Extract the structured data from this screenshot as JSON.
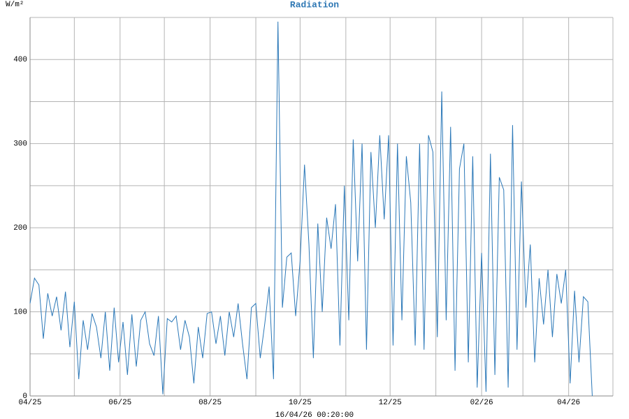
{
  "chart_data": {
    "type": "line",
    "title": "Radiation",
    "y_unit": "W/m²",
    "footer": "16/04/26 00:20:00",
    "color": "#2b78b8",
    "grid": true,
    "xlim": [
      0,
      395
    ],
    "ylim": [
      0,
      450
    ],
    "xticks": [
      {
        "value": 0,
        "label": "04/25"
      },
      {
        "value": 61,
        "label": "06/25"
      },
      {
        "value": 122,
        "label": "08/25"
      },
      {
        "value": 183,
        "label": "10/25"
      },
      {
        "value": 244,
        "label": "12/25"
      },
      {
        "value": 306,
        "label": "02/26"
      },
      {
        "value": 365,
        "label": "04/26"
      }
    ],
    "minor_xticks": [
      30,
      91,
      153,
      214,
      275,
      334,
      395
    ],
    "yticks": [
      0,
      100,
      200,
      300,
      400
    ],
    "minor_yticks": [
      50,
      150,
      250,
      350,
      450
    ],
    "x": [
      0,
      3,
      6,
      9,
      12,
      15,
      18,
      21,
      24,
      27,
      30,
      33,
      36,
      39,
      42,
      45,
      48,
      51,
      54,
      57,
      60,
      63,
      66,
      69,
      72,
      75,
      78,
      81,
      84,
      87,
      90,
      93,
      96,
      99,
      102,
      105,
      108,
      111,
      114,
      117,
      120,
      123,
      126,
      129,
      132,
      135,
      138,
      141,
      144,
      147,
      150,
      153,
      156,
      159,
      162,
      165,
      168,
      171,
      174,
      177,
      180,
      183,
      186,
      189,
      192,
      195,
      198,
      201,
      204,
      207,
      210,
      213,
      216,
      219,
      222,
      225,
      228,
      231,
      234,
      237,
      240,
      243,
      246,
      249,
      252,
      255,
      258,
      261,
      264,
      267,
      270,
      273,
      276,
      279,
      282,
      285,
      288,
      291,
      294,
      297,
      300,
      303,
      306,
      309,
      312,
      315,
      318,
      321,
      324,
      327,
      330,
      333,
      336,
      339,
      342,
      345,
      348,
      351,
      354,
      357,
      360,
      363,
      366,
      369,
      372,
      375,
      378,
      381
    ],
    "values": [
      110,
      140,
      132,
      68,
      122,
      95,
      118,
      78,
      124,
      58,
      112,
      20,
      90,
      55,
      98,
      82,
      45,
      100,
      30,
      105,
      40,
      88,
      25,
      97,
      35,
      90,
      100,
      62,
      48,
      95,
      2,
      92,
      88,
      95,
      55,
      90,
      70,
      15,
      82,
      45,
      98,
      100,
      62,
      95,
      48,
      100,
      70,
      110,
      62,
      20,
      105,
      110,
      45,
      85,
      130,
      20,
      445,
      105,
      165,
      170,
      95,
      160,
      275,
      180,
      45,
      205,
      100,
      212,
      175,
      228,
      60,
      250,
      90,
      305,
      160,
      300,
      55,
      290,
      200,
      310,
      210,
      310,
      60,
      300,
      90,
      285,
      230,
      60,
      300,
      55,
      310,
      290,
      70,
      362,
      90,
      320,
      30,
      270,
      300,
      40,
      285,
      10,
      170,
      5,
      288,
      25,
      260,
      245,
      10,
      322,
      55,
      255,
      105,
      180,
      40,
      140,
      85,
      150,
      70,
      145,
      110,
      150,
      15,
      125,
      40,
      118,
      112,
      0
    ]
  }
}
